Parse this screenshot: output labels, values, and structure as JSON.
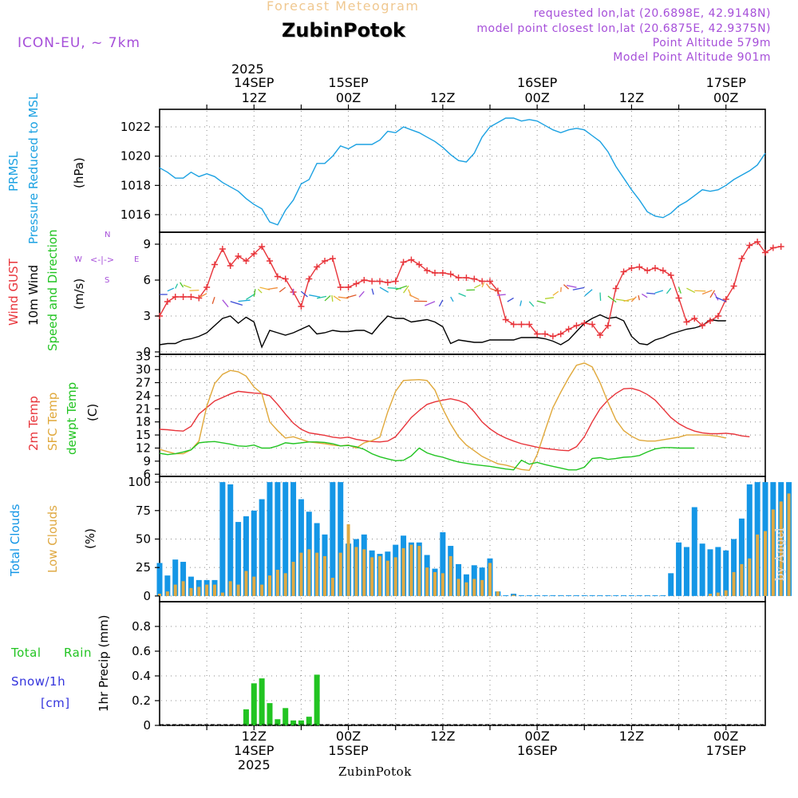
{
  "header": {
    "subtitle": "Forecast Meteogram",
    "title": "ZubinPotok",
    "model": "ICON-EU, ~ 7km",
    "requested_point": "requested lon,lat (20.6898E, 42.9148N)",
    "model_point": "model point closest lon,lat (20.6875E, 42.9375N)",
    "point_altitude": "Point Altitude 579m",
    "model_altitude": "Model Point Altitude 901m",
    "footer_name": "ZubinPotok",
    "watermark": "by Angel"
  },
  "time_axis": {
    "top_year": "2025",
    "top_labels": [
      {
        "t": 12,
        "line1": "14SEP",
        "line2": "12Z"
      },
      {
        "t": 24,
        "line1": "15SEP",
        "line2": "00Z"
      },
      {
        "t": 36,
        "line1": "",
        "line2": "12Z"
      },
      {
        "t": 48,
        "line1": "16SEP",
        "line2": "00Z"
      },
      {
        "t": 60,
        "line1": "",
        "line2": "12Z"
      },
      {
        "t": 72,
        "line1": "17SEP",
        "line2": "00Z"
      }
    ],
    "bottom_labels": [
      {
        "t": 12,
        "line1": "12Z",
        "line2": "14SEP",
        "line3": "2025"
      },
      {
        "t": 24,
        "line1": "00Z",
        "line2": "15SEP",
        "line3": ""
      },
      {
        "t": 36,
        "line1": "12Z",
        "line2": "",
        "line3": ""
      },
      {
        "t": 48,
        "line1": "00Z",
        "line2": "16SEP",
        "line3": ""
      },
      {
        "t": 60,
        "line1": "12Z",
        "line2": "",
        "line3": ""
      },
      {
        "t": 72,
        "line1": "00Z",
        "line2": "17SEP",
        "line3": ""
      }
    ],
    "range_hours": [
      0,
      77
    ]
  },
  "panel_labels": {
    "pressure": {
      "name": "PRMSL",
      "desc": "Pressure Reduced to MSL",
      "unit": "(hPa)"
    },
    "wind": {
      "gust": "Wind GUST",
      "wind10": "10m Wind",
      "speed_dir": "Speed and Direction",
      "unit": "(m/s)",
      "compass_n": "N",
      "compass_s": "S",
      "compass_w": "W",
      "compass_e": "E",
      "compass_ew": "<-|->"
    },
    "temp": {
      "t2m": "2m Temp",
      "sfc": "SFC Temp",
      "dewpt": "dewpt Temp",
      "unit": "(C)"
    },
    "clouds": {
      "total": "Total Clouds",
      "low": "Low Clouds",
      "unit": "(%)"
    },
    "precip": {
      "rain": "Total",
      "rain2": "Rain",
      "snow": "Snow/1h",
      "snow_unit": "[cm]",
      "axis": "1hr Precip (mm)"
    }
  },
  "colors": {
    "pressure": "#1ba1e2",
    "gust": "#e8343a",
    "wind10": "#000000",
    "t2m": "#e8343a",
    "sfc": "#e0a83a",
    "dewpt": "#22c422",
    "total_clouds": "#1496e6",
    "low_clouds": "#dfa943",
    "rain": "#22c422",
    "snow": "#3333dd",
    "header_purple": "#a64fd9",
    "subtitle": "#f0c890"
  },
  "chart_data": [
    {
      "type": "line",
      "title": "PRMSL Pressure Reduced to MSL",
      "ylabel": "(hPa)",
      "ylim": [
        1014.8,
        1023.2
      ],
      "yticks": [
        1016,
        1018,
        1020,
        1022
      ],
      "x_start": 0,
      "x_step": 1,
      "series": [
        {
          "name": "PRMSL",
          "values": [
            1019.2,
            1018.9,
            1018.5,
            1018.5,
            1018.9,
            1018.6,
            1018.8,
            1018.6,
            1018.2,
            1017.9,
            1017.6,
            1017.1,
            1016.7,
            1016.4,
            1015.5,
            1015.3,
            1016.3,
            1017.0,
            1018.1,
            1018.4,
            1019.5,
            1019.5,
            1020.0,
            1020.7,
            1020.5,
            1020.8,
            1020.8,
            1020.8,
            1021.1,
            1021.7,
            1021.6,
            1022.0,
            1021.8,
            1021.6,
            1021.3,
            1021.0,
            1020.6,
            1020.1,
            1019.7,
            1019.6,
            1020.2,
            1021.3,
            1022.0,
            1022.3,
            1022.6,
            1022.6,
            1022.4,
            1022.5,
            1022.4,
            1022.1,
            1021.8,
            1021.6,
            1021.8,
            1021.9,
            1021.8,
            1021.4,
            1021.0,
            1020.3,
            1019.3,
            1018.5,
            1017.7,
            1017.0,
            1016.2,
            1015.9,
            1015.8,
            1016.1,
            1016.6,
            1016.9,
            1017.3,
            1017.7,
            1017.6,
            1017.7,
            1018.0,
            1018.4,
            1018.7,
            1019.0,
            1019.4,
            1020.2
          ]
        }
      ]
    },
    {
      "type": "line",
      "title": "Wind GUST / 10m Wind Speed and Direction",
      "ylabel": "(m/s)",
      "ylim": [
        -0.2,
        10
      ],
      "yticks": [
        0,
        3,
        6,
        9
      ],
      "x_start": 0,
      "x_step": 1,
      "series": [
        {
          "name": "Wind GUST",
          "values": [
            3.0,
            4.2,
            4.6,
            4.6,
            4.6,
            4.5,
            5.4,
            7.3,
            8.6,
            7.2,
            8.0,
            7.6,
            8.2,
            8.8,
            7.6,
            6.3,
            6.1,
            5.0,
            3.8,
            6.1,
            7.1,
            7.6,
            7.8,
            5.4,
            5.4,
            5.7,
            6.0,
            5.9,
            5.9,
            5.8,
            5.9,
            7.5,
            7.7,
            7.3,
            6.8,
            6.6,
            6.6,
            6.5,
            6.2,
            6.2,
            6.1,
            5.9,
            5.9,
            5.1,
            2.7,
            2.3,
            2.3,
            2.3,
            1.5,
            1.5,
            1.3,
            1.5,
            1.9,
            2.2,
            2.4,
            2.3,
            1.4,
            2.2,
            5.3,
            6.7,
            7.0,
            7.1,
            6.8,
            7.0,
            6.8,
            6.4,
            4.5,
            2.5,
            2.8,
            2.2,
            2.6,
            3.0,
            4.4,
            5.5,
            7.8,
            8.9,
            9.2,
            8.3,
            8.7,
            8.8
          ]
        },
        {
          "name": "10m Wind",
          "values": [
            0.6,
            0.7,
            0.7,
            1.0,
            1.1,
            1.3,
            1.6,
            2.2,
            2.8,
            3.0,
            2.4,
            2.9,
            2.5,
            0.4,
            1.8,
            1.6,
            1.4,
            1.6,
            1.9,
            2.2,
            1.5,
            1.6,
            1.8,
            1.7,
            1.7,
            1.8,
            1.8,
            1.5,
            2.3,
            3.0,
            2.8,
            2.8,
            2.5,
            2.6,
            2.7,
            2.5,
            2.1,
            0.7,
            1.0,
            0.9,
            0.8,
            0.8,
            1.0,
            1.0,
            1.0,
            1.0,
            1.2,
            1.2,
            1.2,
            1.1,
            0.9,
            0.6,
            1.0,
            1.7,
            2.4,
            2.8,
            3.1,
            2.8,
            2.9,
            2.6,
            1.3,
            0.7,
            0.6,
            1.0,
            1.2,
            1.5,
            1.7,
            1.9,
            2.0,
            2.2,
            2.7,
            2.6,
            2.6
          ]
        }
      ]
    },
    {
      "type": "line",
      "title": "2m Temp / SFC Temp / dewpt Temp",
      "ylabel": "(C)",
      "ylim": [
        5.5,
        33.5
      ],
      "yticks": [
        6,
        9,
        12,
        15,
        18,
        21,
        24,
        27,
        30,
        33
      ],
      "x_start": 0,
      "x_step": 1,
      "series": [
        {
          "name": "2m Temp",
          "values": [
            16.3,
            16.2,
            16.0,
            15.9,
            17.0,
            19.8,
            21.3,
            22.8,
            23.6,
            24.4,
            25.0,
            24.8,
            24.6,
            24.5,
            24.0,
            22.0,
            19.8,
            17.7,
            16.3,
            15.5,
            15.2,
            14.9,
            14.5,
            14.3,
            14.5,
            14.0,
            13.7,
            13.5,
            13.4,
            13.6,
            14.6,
            16.8,
            19.0,
            20.6,
            22.0,
            22.6,
            23.0,
            23.3,
            22.9,
            22.2,
            20.3,
            18.0,
            16.4,
            15.2,
            14.3,
            13.6,
            13.0,
            12.6,
            12.2,
            11.9,
            11.7,
            11.5,
            11.4,
            12.3,
            14.6,
            18.0,
            21.0,
            23.0,
            24.5,
            25.6,
            25.7,
            25.2,
            24.3,
            23.0,
            21.0,
            19.0,
            17.6,
            16.6,
            15.9,
            15.5,
            15.3,
            15.3,
            15.4,
            15.2,
            14.8,
            14.6
          ]
        },
        {
          "name": "SFC Temp",
          "values": [
            11.7,
            11.2,
            10.7,
            10.7,
            11.6,
            13.6,
            21.6,
            26.8,
            28.9,
            29.8,
            29.5,
            28.5,
            26.0,
            24.5,
            18.0,
            16.0,
            14.3,
            14.6,
            14.0,
            13.4,
            13.2,
            13.0,
            12.7,
            12.5,
            12.7,
            12.0,
            13.2,
            13.7,
            14.5,
            20.3,
            25.0,
            27.5,
            27.6,
            27.7,
            27.5,
            25.3,
            21.0,
            17.5,
            14.6,
            12.7,
            11.4,
            10.1,
            9.2,
            8.4,
            8.1,
            7.6,
            7.1,
            6.9,
            10.5,
            16.0,
            21.3,
            24.8,
            28.1,
            31.0,
            31.5,
            30.6,
            27.0,
            22.5,
            18.5,
            16.0,
            14.7,
            13.8,
            13.6,
            13.6,
            13.9,
            14.2,
            14.5,
            15.0,
            15.0,
            15.0,
            14.9,
            14.7,
            14.3
          ]
        },
        {
          "name": "dewpt Temp",
          "values": [
            10.8,
            10.5,
            10.7,
            11.1,
            11.6,
            13.2,
            13.4,
            13.5,
            13.2,
            12.9,
            12.5,
            12.4,
            12.7,
            12.0,
            12.0,
            12.5,
            13.2,
            13.0,
            13.2,
            13.4,
            13.4,
            13.3,
            13.0,
            12.5,
            12.6,
            12.3,
            11.7,
            10.7,
            10.0,
            9.5,
            9.1,
            9.2,
            10.2,
            12.0,
            10.9,
            10.3,
            9.9,
            9.3,
            8.8,
            8.5,
            8.2,
            8.0,
            7.8,
            7.5,
            7.2,
            7.0,
            9.2,
            8.3,
            8.7,
            8.2,
            7.8,
            7.4,
            7.0,
            7.0,
            7.6,
            9.6,
            9.8,
            9.4,
            9.6,
            9.9,
            10.0,
            10.3,
            11.1,
            11.8,
            12.1,
            12.1,
            12.0,
            12.0,
            12.0
          ]
        }
      ]
    },
    {
      "type": "bar",
      "title": "Total Clouds / Low Clouds",
      "ylabel": "(%)",
      "ylim": [
        -5,
        105
      ],
      "yticks": [
        0,
        25,
        50,
        75,
        100
      ],
      "x_start": 0,
      "x_step": 1,
      "series": [
        {
          "name": "Total Clouds",
          "values": [
            29,
            18,
            32,
            30,
            17,
            14,
            14,
            14,
            100,
            98,
            65,
            70,
            75,
            85,
            100,
            100,
            100,
            100,
            85,
            74,
            64,
            54,
            100,
            100,
            46,
            50,
            54,
            40,
            37,
            39,
            45,
            53,
            47,
            47,
            36,
            24,
            56,
            44,
            28,
            19,
            27,
            25,
            33,
            4,
            0,
            2,
            0,
            0,
            0,
            0,
            0,
            0,
            0,
            0,
            0,
            0,
            0,
            0,
            0,
            0,
            0,
            0,
            0,
            0,
            0,
            20,
            47,
            43,
            78,
            46,
            41,
            43,
            40,
            50,
            68,
            98,
            100,
            100,
            100,
            100,
            100
          ]
        },
        {
          "name": "Low Clouds",
          "values": [
            2,
            4,
            10,
            13,
            7,
            8,
            10,
            10,
            3,
            13,
            10,
            22,
            17,
            10,
            18,
            23,
            20,
            30,
            38,
            41,
            38,
            35,
            16,
            38,
            63,
            43,
            41,
            34,
            35,
            31,
            34,
            42,
            45,
            44,
            25,
            21,
            20,
            35,
            15,
            12,
            15,
            14,
            29,
            4,
            0,
            1,
            0,
            0,
            0,
            0,
            0,
            0,
            0,
            0,
            0,
            0,
            0,
            0,
            0,
            0,
            0,
            0,
            0,
            0,
            0,
            0,
            0,
            0,
            0,
            0,
            2,
            3,
            5,
            21,
            28,
            33,
            54,
            57,
            76,
            83,
            90
          ]
        }
      ]
    },
    {
      "type": "bar",
      "title": "1hr Precip",
      "ylabel": "1hr Precip (mm)",
      "ylim": [
        0,
        1.0
      ],
      "yticks": [
        0,
        0.2,
        0.4,
        0.6,
        0.8
      ],
      "series": [
        {
          "name": "Total Rain",
          "x": [
            11,
            12,
            13,
            14,
            15,
            16,
            17,
            18,
            19,
            20
          ],
          "values": [
            0.13,
            0.34,
            0.38,
            0.18,
            0.05,
            0.14,
            0.04,
            0.04,
            0.07,
            0.41
          ]
        },
        {
          "name": "Snow/1h",
          "x": [],
          "values": []
        }
      ]
    }
  ]
}
